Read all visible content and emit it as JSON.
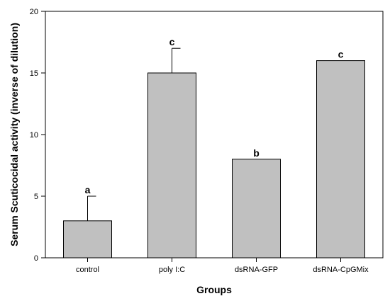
{
  "chart_data": {
    "type": "bar",
    "title": "",
    "xlabel": "Groups",
    "ylabel": "Serum Scuticocidal activity (inverse of dilution)",
    "ylim": [
      0,
      20
    ],
    "yticks": [
      0,
      5,
      10,
      15,
      20
    ],
    "grid": false,
    "categories": [
      "control",
      "poly I:C",
      "dsRNA-GFP",
      "dsRNA-CpGMix"
    ],
    "values": [
      3,
      15,
      8,
      16
    ],
    "errors": [
      2,
      2,
      0,
      0
    ],
    "significance_labels": [
      "a",
      "c",
      "b",
      "c"
    ],
    "bar_color": "#c0c0c0",
    "edge_color": "#000000"
  }
}
